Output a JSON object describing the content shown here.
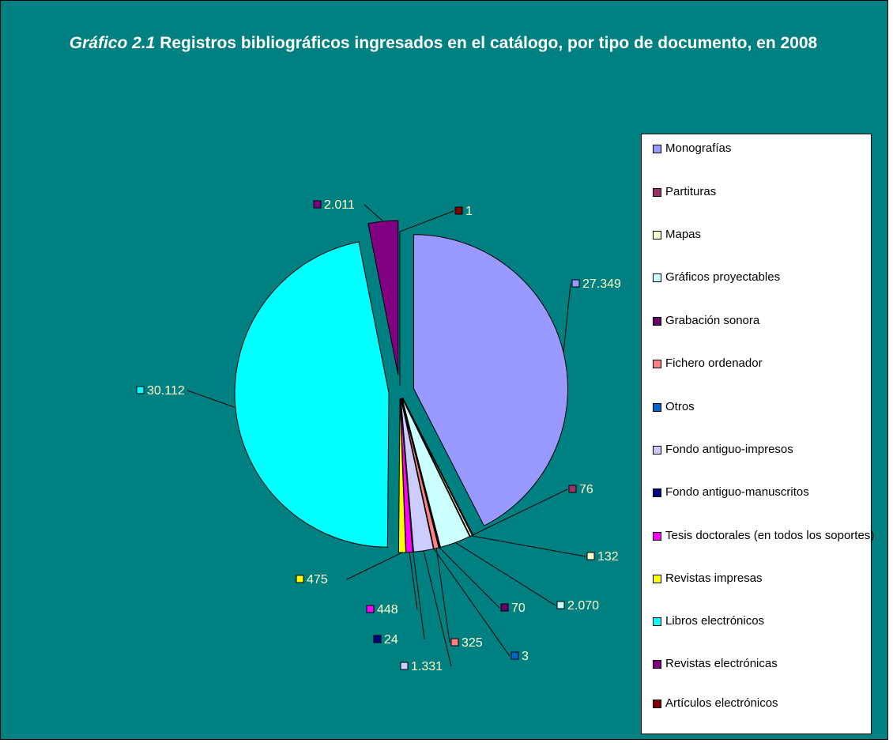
{
  "chart_data": {
    "type": "pie",
    "title": {
      "number": "Gráfico 2.1",
      "text": "Registros bibliográficos ingresados en el catálogo, por tipo de documento, en 2008"
    },
    "categories": [
      "Monografías",
      "Partituras",
      "Mapas",
      "Gráficos proyectables",
      "Grabación sonora",
      "Fichero ordenador",
      "Otros",
      "Fondo antiguo-impresos",
      "Fondo antiguo-manuscritos",
      "Tesis doctorales (en todos los soportes)",
      "Revistas impresas",
      "Libros electrónicos",
      "Revistas electrónicas",
      "Artículos electrónicos"
    ],
    "values": [
      27349,
      76,
      132,
      2070,
      70,
      325,
      3,
      1331,
      24,
      448,
      475,
      30112,
      2011,
      1
    ],
    "value_labels": [
      "27.349",
      "76",
      "132",
      "2.070",
      "70",
      "325",
      "3",
      "1.331",
      "24",
      "448",
      "475",
      "30.112",
      "2.011",
      "1"
    ],
    "colors": [
      "#9999FF",
      "#993366",
      "#FFFFCC",
      "#CCFFFF",
      "#660066",
      "#FF8080",
      "#0066CC",
      "#CCCCFF",
      "#000080",
      "#FF00FF",
      "#FFFF00",
      "#00FFFF",
      "#800080",
      "#800000"
    ],
    "legend": "right"
  }
}
